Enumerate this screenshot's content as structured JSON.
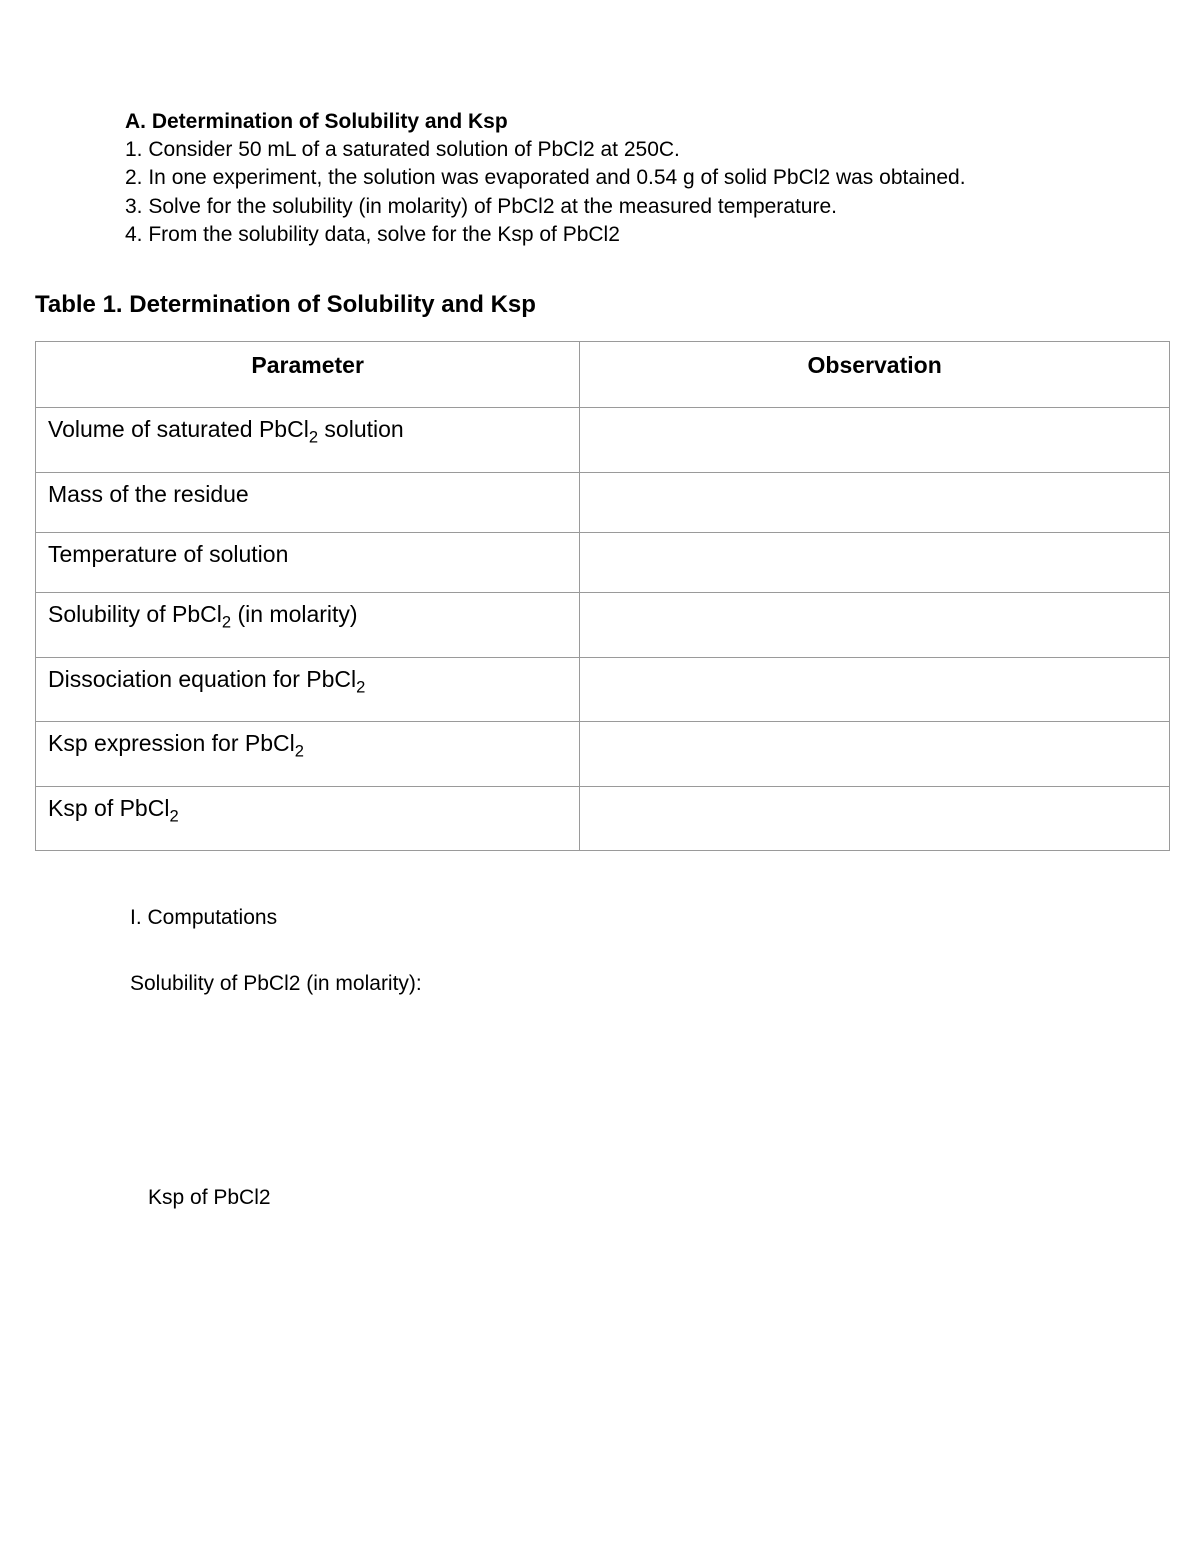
{
  "section": {
    "heading": "A.  Determination of Solubility and Ksp",
    "lines": [
      "1. Consider 50 mL of a saturated solution of PbCl2 at 250C.",
      "2. In one experiment, the solution was evaporated and 0.54 g of solid PbCl2 was obtained.",
      "3. Solve for the solubility (in molarity) of PbCl2 at the measured temperature.",
      "4. From the solubility data, solve for the Ksp of PbCl2"
    ]
  },
  "table": {
    "title": "Table 1. Determination of Solubility and Ksp",
    "columns": [
      "Parameter",
      "Observation"
    ],
    "rows": [
      {
        "param_html": "Volume of saturated PbCl<span class=\"sub2\">2</span> solution",
        "obs": ""
      },
      {
        "param_html": "Mass of the residue",
        "obs": ""
      },
      {
        "param_html": "Temperature of solution",
        "obs": ""
      },
      {
        "param_html": "Solubility of PbCl<span class=\"sub2\">2</span> (in molarity)",
        "obs": ""
      },
      {
        "param_html": "Dissociation equation for PbCl<span class=\"sub2\">2</span>",
        "obs": ""
      },
      {
        "param_html": "Ksp expression for PbCl<span class=\"sub2\">2</span>",
        "obs": ""
      },
      {
        "param_html": "Ksp of PbCl<span class=\"sub2\">2</span>",
        "obs": ""
      }
    ],
    "border_color": "#9a9a9a",
    "header_fontsize": 23,
    "cell_fontsize": 23
  },
  "computations": {
    "heading": "I. Computations",
    "line1": "Solubility of PbCl2 (in molarity):",
    "line2": "Ksp of PbCl2"
  }
}
